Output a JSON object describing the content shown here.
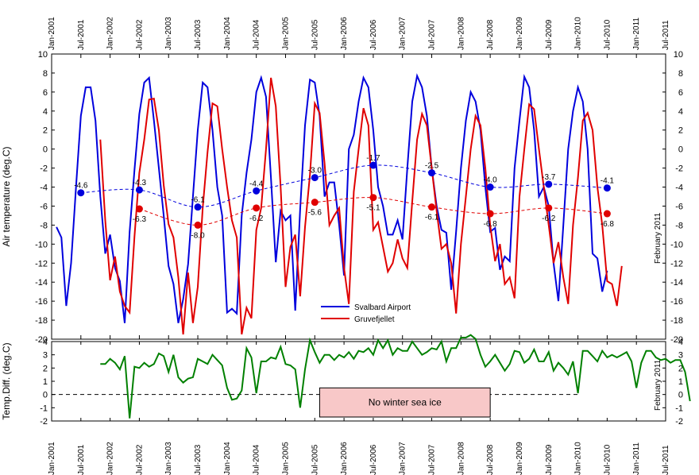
{
  "chart_data": {
    "type": "line",
    "date_ticks": [
      "Jan-2001",
      "Jul-2001",
      "Jan-2002",
      "Jul-2002",
      "Jan-2003",
      "Jul-2003",
      "Jan-2004",
      "Jul-2004",
      "Jan-2005",
      "Jul-2005",
      "Jan-2006",
      "Jul-2006",
      "Jan-2007",
      "Jul-2007",
      "Jan-2008",
      "Jul-2008",
      "Jan-2009",
      "Jul-2009",
      "Jan-2010",
      "Jul-2010",
      "Jan-2011",
      "Jul-2011"
    ],
    "date_range": [
      "2001-01",
      "2011-07"
    ],
    "side_note": "February 2011",
    "top_panel": {
      "ylabel": "Air temperature (deg.C)",
      "ylim": [
        -20,
        10
      ],
      "yticks": [
        -20,
        -18,
        -16,
        -14,
        -12,
        -10,
        -8,
        -6,
        -4,
        -2,
        0,
        2,
        4,
        6,
        8,
        10
      ],
      "series": [
        {
          "name": "Svalbard Airport",
          "color": "#0000dd",
          "start": "2001-02",
          "values": [
            -8.2,
            -9.3,
            -16.5,
            -12,
            -4,
            3.5,
            6.5,
            6.5,
            3,
            -5,
            -11,
            -9,
            -12.5,
            -13.9,
            -18.3,
            -8.7,
            -2.2,
            3.7,
            7,
            7.5,
            3,
            -2,
            -7,
            -12.3,
            -14.2,
            -18.3,
            -15.8,
            -12.1,
            -5,
            2,
            7,
            6.5,
            2,
            -4,
            -7,
            -17.2,
            -16.8,
            -17.3,
            -7,
            -2.5,
            1,
            6,
            7.5,
            5.5,
            -3,
            -11.9,
            -6.5,
            -7.5,
            -7,
            -17,
            -6.3,
            2.5,
            7.3,
            7,
            3.5,
            -5,
            -3.5,
            -3.5,
            -8,
            -13.3,
            0,
            1.5,
            5,
            7.5,
            6.5,
            2,
            -4,
            -6,
            -9,
            -9,
            -7.5,
            -9.5,
            -2,
            5,
            7.7,
            6.5,
            3.5,
            -2,
            -6,
            -8.5,
            -8.8,
            -14.8,
            -8.7,
            -2,
            3,
            6,
            5,
            2,
            -4,
            -8.7,
            -8.3,
            -12.7,
            -11.3,
            -11.8,
            -2,
            3,
            7.6,
            6.5,
            2,
            -5,
            -4,
            -6,
            -12,
            -16,
            -8,
            0,
            4,
            6.5,
            5,
            0,
            -11,
            -11.5,
            -15,
            -12.8
          ],
          "annual_means": [
            {
              "x": "2001-07",
              "value": -4.6
            },
            {
              "x": "2002-07",
              "value": -4.3
            },
            {
              "x": "2003-07",
              "value": -6.1
            },
            {
              "x": "2004-07",
              "value": -4.4
            },
            {
              "x": "2005-07",
              "value": -3.0
            },
            {
              "x": "2006-07",
              "value": -1.7
            },
            {
              "x": "2007-07",
              "value": -2.5
            },
            {
              "x": "2008-07",
              "value": -4.0
            },
            {
              "x": "2009-07",
              "value": -3.7
            },
            {
              "x": "2010-07",
              "value": -4.1
            }
          ]
        },
        {
          "name": "Gruvefjellet",
          "color": "#e00000",
          "start": "2001-11",
          "values": [
            1,
            -7.5,
            -13.8,
            -11.3,
            -15,
            -16.5,
            -17.2,
            -9.2,
            -2.5,
            1,
            5.2,
            5.3,
            2,
            -3.8,
            -7.9,
            -9.3,
            -13.5,
            -19.5,
            -13,
            -18.3,
            -14.5,
            -6.2,
            -0.3,
            4.8,
            4.5,
            0,
            -4,
            -7.5,
            -9.3,
            -19.5,
            -16.7,
            -17.8,
            -8.5,
            -6.2,
            0,
            7.5,
            4.5,
            -4,
            -14.5,
            -10.3,
            -9,
            -15.5,
            -8.2,
            -2.7,
            4.8,
            3.8,
            -1.5,
            -8,
            -7,
            -6.2,
            -12.5,
            -16.3,
            -4.5,
            0,
            4.3,
            2.5,
            -8.5,
            -7.7,
            -10.3,
            -12.9,
            -12,
            -9.5,
            -11.5,
            -12.5,
            -5.5,
            1,
            3.7,
            2.5,
            -2,
            -6.5,
            -10.5,
            -10,
            -12,
            -17.3,
            -10,
            -5,
            0,
            3.5,
            2.5,
            -2,
            -8,
            -11.8,
            -10,
            -14.2,
            -13.5,
            -15.7,
            -5,
            0,
            4.7,
            4.2,
            0,
            -4,
            -8,
            -12,
            -9.8,
            -13.5,
            -16.3,
            -8,
            -3,
            3,
            3.8,
            2,
            -4,
            -8,
            -13.9,
            -14.2,
            -16.5,
            -12.3
          ],
          "annual_means": [
            {
              "x": "2002-07",
              "value": -6.3
            },
            {
              "x": "2003-07",
              "value": -8.0
            },
            {
              "x": "2004-07",
              "value": -6.2
            },
            {
              "x": "2005-07",
              "value": -5.6
            },
            {
              "x": "2006-07",
              "value": -5.1
            },
            {
              "x": "2007-07",
              "value": -6.1
            },
            {
              "x": "2008-07",
              "value": -6.8
            },
            {
              "x": "2009-07",
              "value": -6.2
            },
            {
              "x": "2010-07",
              "value": -6.8
            }
          ]
        }
      ],
      "legend": "bottom-center"
    },
    "bottom_panel": {
      "ylabel": "Temp.Diff. (deg.C)",
      "ylim": [
        -2,
        4
      ],
      "yticks": [
        -2,
        -1,
        0,
        1,
        2,
        3,
        4
      ],
      "series": [
        {
          "name": "",
          "color": "#008000",
          "start": "2001-11",
          "values": [
            2.3,
            2.3,
            2.7,
            2.4,
            1.9,
            2.9,
            -1.8,
            2.1,
            2,
            2.4,
            2.1,
            2.3,
            3.1,
            2.9,
            1.7,
            3,
            1.3,
            0.9,
            1.2,
            1.3,
            2.7,
            2.5,
            2.3,
            3,
            2.6,
            2.2,
            0.5,
            -0.4,
            -0.3,
            0.3,
            3.5,
            2.8,
            0.1,
            2.5,
            2.5,
            2.8,
            2.7,
            3.6,
            2.3,
            2.2,
            1.9,
            -1,
            1.9,
            4.1,
            3.2,
            2.4,
            3,
            3,
            2.6,
            3,
            2.8,
            3.2,
            2.7,
            3.3,
            3.2,
            3.5,
            3,
            4.1,
            3.5,
            4.1,
            3,
            3.5,
            3.3,
            3.3,
            4,
            3.5,
            3,
            3.2,
            3.5,
            3.4,
            4,
            2.5,
            3.5,
            3.5,
            4.3,
            4.3,
            4.5,
            4.2,
            3,
            2.1,
            2.5,
            3,
            2.4,
            1.8,
            2.3,
            3.3,
            3.2,
            2.4,
            2.7,
            3.4,
            2.5,
            2.5,
            3.2,
            1.8,
            2.4,
            2,
            1.5,
            2.5,
            0.1,
            3.3,
            3.3,
            2.9,
            2.5,
            3.3,
            2.8,
            3,
            2.8,
            3,
            3.2,
            2.5,
            0.5,
            2.4,
            3.3,
            3.3,
            2.8,
            2.6,
            2.7,
            2.4,
            2.6,
            2.6,
            1.7,
            -0.5
          ],
          "zero_line": "dashed"
        }
      ],
      "annotation": "No winter sea ice",
      "annotation_range": [
        "2005-08",
        "2008-07"
      ]
    }
  }
}
